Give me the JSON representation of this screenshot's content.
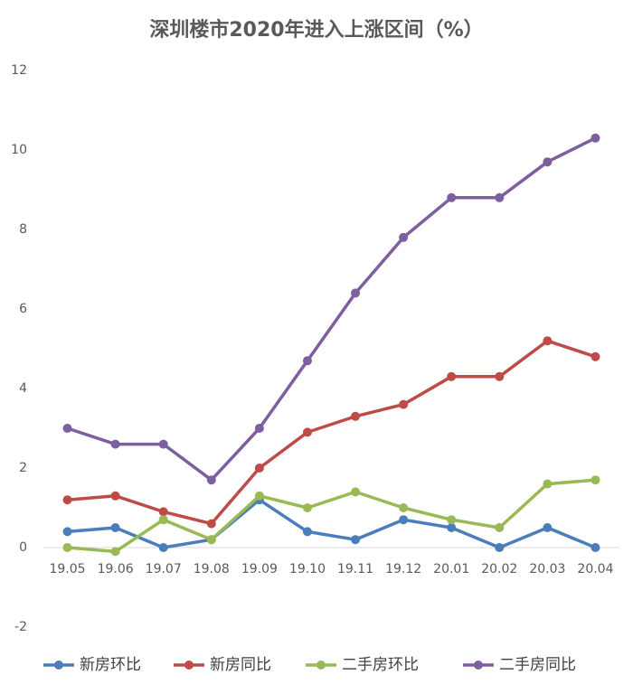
{
  "chart_data": {
    "type": "line",
    "title": "深圳楼市2020年进入上涨区间（%）",
    "categories": [
      "19.05",
      "19.06",
      "19.07",
      "19.08",
      "19.09",
      "19.10",
      "19.11",
      "19.12",
      "20.01",
      "20.02",
      "20.03",
      "20.04"
    ],
    "series": [
      {
        "name": "新房环比",
        "color": "#4a7ebb",
        "values": [
          0.4,
          0.5,
          0,
          0.2,
          1.2,
          0.4,
          0.2,
          0.7,
          0.5,
          0,
          0.5,
          0
        ]
      },
      {
        "name": "新房同比",
        "color": "#be4b48",
        "values": [
          1.2,
          1.3,
          0.9,
          0.6,
          2.0,
          2.9,
          3.3,
          3.6,
          4.3,
          4.3,
          5.2,
          4.8
        ]
      },
      {
        "name": "二手房环比",
        "color": "#98b954",
        "values": [
          0,
          -0.1,
          0.7,
          0.2,
          1.3,
          1.0,
          1.4,
          1.0,
          0.7,
          0.5,
          1.6,
          1.7
        ]
      },
      {
        "name": "二手房同比",
        "color": "#7d5fa0",
        "values": [
          3.0,
          2.6,
          2.6,
          1.7,
          3.0,
          4.7,
          6.4,
          7.8,
          8.8,
          8.8,
          9.7,
          10.3
        ]
      }
    ],
    "ylim": [
      -2,
      12
    ],
    "yticks": [
      -2,
      0,
      2,
      4,
      6,
      8,
      10,
      12
    ],
    "grid": false,
    "legend": "bottom"
  }
}
